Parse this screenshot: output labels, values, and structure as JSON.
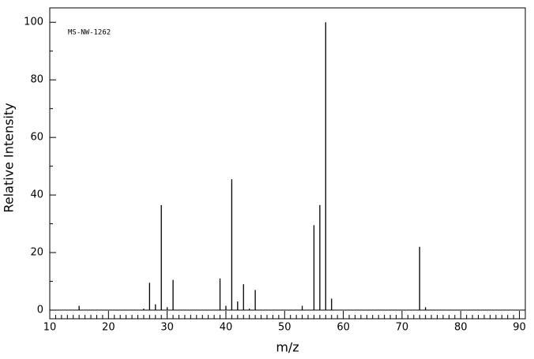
{
  "chart_data": {
    "type": "stem",
    "annotation": "MS-NW-1262",
    "x_label": "m/z",
    "y_label": "Relative Intensity",
    "color": "#000000",
    "x": [
      15,
      26,
      27,
      28,
      29,
      30,
      31,
      39,
      40,
      41,
      42,
      43,
      44,
      45,
      53,
      55,
      56,
      57,
      58,
      73,
      74
    ],
    "values": [
      1.5,
      0.5,
      9.5,
      2,
      36.5,
      1,
      10.5,
      11,
      1.5,
      45.5,
      3,
      9,
      0.5,
      7,
      1.5,
      29.5,
      36.5,
      100,
      4,
      22,
      1
    ],
    "xlim": [
      10,
      91
    ],
    "ylim": [
      -3,
      105
    ],
    "xticks": [
      10,
      20,
      30,
      40,
      50,
      60,
      70,
      80,
      90
    ],
    "yticks": [
      0,
      20,
      40,
      60,
      80,
      100
    ],
    "xminorticks": [
      11,
      12,
      13,
      14,
      15,
      16,
      17,
      18,
      19,
      21,
      22,
      23,
      24,
      25,
      26,
      27,
      28,
      29,
      31,
      32,
      33,
      34,
      35,
      36,
      37,
      38,
      39,
      41,
      42,
      43,
      44,
      45,
      46,
      47,
      48,
      49,
      51,
      52,
      53,
      54,
      55,
      56,
      57,
      58,
      59,
      61,
      62,
      63,
      64,
      65,
      66,
      67,
      68,
      69,
      71,
      72,
      73,
      74,
      75,
      76,
      77,
      78,
      79,
      81,
      82,
      83,
      84,
      85,
      86,
      87,
      88,
      89
    ],
    "yminorticks": [
      10,
      30,
      50,
      70,
      90
    ]
  }
}
